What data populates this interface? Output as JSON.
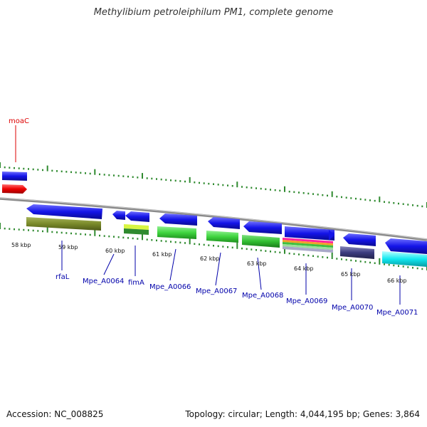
{
  "title": "Methylibium petroleiphilum PM1, complete genome",
  "accession": "Accession: NC_008825",
  "summary": "Topology: circular; Length: 4,044,195 bp; Genes: 3,864",
  "colors": {
    "backbone": "#8a8a8a",
    "gene": "#1515e6",
    "gene_label": "#0000aa",
    "moaC": "#dd0000",
    "tick": "#2f8a2f"
  },
  "scale_labels": [
    "58 kbp",
    "59 kbp",
    "60 kbp",
    "61 kbp",
    "62 kbp",
    "63 kbp",
    "64 kbp",
    "65 kbp",
    "66 kbp"
  ],
  "genes": [
    {
      "name": "moaC"
    },
    {
      "name": "rfaL"
    },
    {
      "name": "Mpe_A0064"
    },
    {
      "name": "fimA"
    },
    {
      "name": "Mpe_A0066"
    },
    {
      "name": "Mpe_A0067"
    },
    {
      "name": "Mpe_A0068"
    },
    {
      "name": "Mpe_A0069"
    },
    {
      "name": "Mpe_A0070"
    },
    {
      "name": "Mpe_A0071"
    }
  ]
}
